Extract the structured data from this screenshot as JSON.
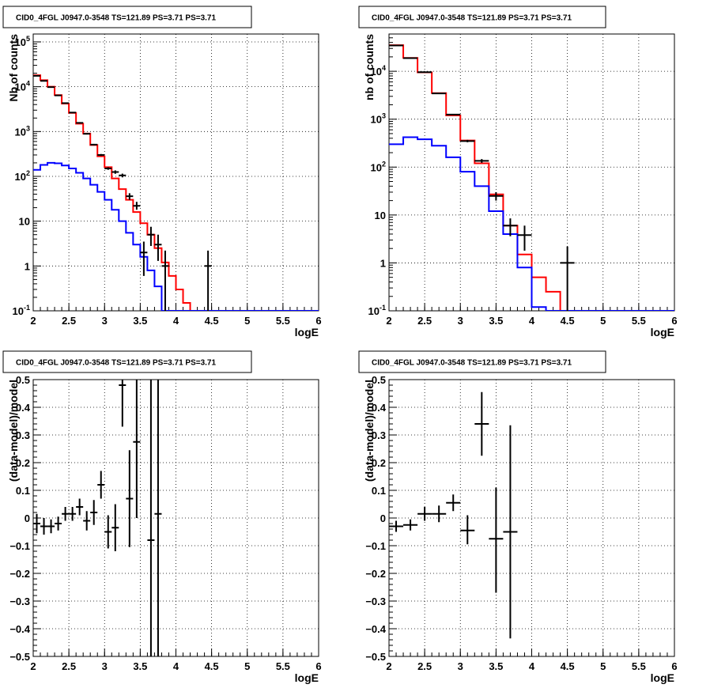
{
  "chart_data": [
    {
      "type": "histogram",
      "title": "CID0_4FGL J0947.0-3548 TS=121.89 PS=3.71 PS=3.71",
      "xlabel": "logE",
      "ylabel": "Nb of counts",
      "xlim": [
        2,
        6
      ],
      "ylim": [
        0.1,
        150000
      ],
      "yscale": "log",
      "grid": true,
      "xticks": [
        "2",
        "2.5",
        "3",
        "3.5",
        "4",
        "4.5",
        "5",
        "5.5",
        "6"
      ],
      "yticks": [
        "10^-1",
        "1",
        "10",
        "10^2",
        "10^3",
        "10^4",
        "10^5"
      ],
      "bin_edges": [
        2.0,
        2.1,
        2.2,
        2.3,
        2.4,
        2.5,
        2.6,
        2.7,
        2.8,
        2.9,
        3.0,
        3.1,
        3.2,
        3.3,
        3.4,
        3.5,
        3.6,
        3.7,
        3.8,
        3.9,
        4.0,
        4.1,
        4.2,
        4.3,
        4.4,
        4.5,
        4.6,
        4.7,
        4.8,
        4.9,
        5.0,
        5.1,
        5.2,
        5.3,
        5.4,
        5.5,
        5.6,
        5.7,
        5.8,
        5.9,
        6.0
      ],
      "series": [
        {
          "color": "#ff0000",
          "kind": "step",
          "values": [
            18000,
            14000,
            10000,
            6500,
            4200,
            2600,
            1500,
            900,
            500,
            280,
            160,
            90,
            52,
            30,
            16,
            9,
            5,
            2.5,
            1.2,
            0.6,
            0.3,
            0.15,
            0.1,
            0.1,
            0.1,
            0.1,
            0.1,
            0.1,
            0.1,
            0.1,
            0.1,
            0.1,
            0.1,
            0.1,
            0.1,
            0.1,
            0.1,
            0.1,
            0.1,
            0.1
          ]
        },
        {
          "color": "#0000ff",
          "kind": "step",
          "values": [
            140,
            180,
            200,
            195,
            175,
            150,
            120,
            90,
            65,
            45,
            30,
            18,
            10,
            5.5,
            3,
            1.6,
            0.8,
            0.35,
            0.1,
            0.1,
            0.1,
            0.1,
            0.1,
            0.1,
            0.1,
            0.1,
            0.1,
            0.1,
            0.1,
            0.1,
            0.1,
            0.1,
            0.1,
            0.1,
            0.1,
            0.1,
            0.1,
            0.1,
            0.1,
            0.1
          ]
        },
        {
          "color": "#000000",
          "kind": "points",
          "points": [
            {
              "x": 2.05,
              "y": 17500,
              "ylo": 17300,
              "yhi": 17700
            },
            {
              "x": 2.15,
              "y": 13500,
              "ylo": 13300,
              "yhi": 13700
            },
            {
              "x": 2.25,
              "y": 9800,
              "ylo": 9600,
              "yhi": 10000
            },
            {
              "x": 2.35,
              "y": 6400,
              "ylo": 6250,
              "yhi": 6550
            },
            {
              "x": 2.45,
              "y": 4300,
              "ylo": 4200,
              "yhi": 4400
            },
            {
              "x": 2.55,
              "y": 2650,
              "ylo": 2570,
              "yhi": 2730
            },
            {
              "x": 2.65,
              "y": 1560,
              "ylo": 1500,
              "yhi": 1620
            },
            {
              "x": 2.75,
              "y": 890,
              "ylo": 860,
              "yhi": 920
            },
            {
              "x": 2.85,
              "y": 510,
              "ylo": 490,
              "yhi": 530
            },
            {
              "x": 2.95,
              "y": 300,
              "ylo": 285,
              "yhi": 315
            },
            {
              "x": 3.05,
              "y": 150,
              "ylo": 140,
              "yhi": 160
            },
            {
              "x": 3.15,
              "y": 125,
              "ylo": 114,
              "yhi": 136
            },
            {
              "x": 3.25,
              "y": 105,
              "ylo": 95,
              "yhi": 115
            },
            {
              "x": 3.35,
              "y": 36,
              "ylo": 30,
              "yhi": 42
            },
            {
              "x": 3.45,
              "y": 22,
              "ylo": 18,
              "yhi": 27
            },
            {
              "x": 3.55,
              "y": 2,
              "ylo": 0.6,
              "yhi": 3.5
            },
            {
              "x": 3.65,
              "y": 5,
              "ylo": 2.8,
              "yhi": 7.5
            },
            {
              "x": 3.75,
              "y": 3,
              "ylo": 1.3,
              "yhi": 5
            },
            {
              "x": 3.85,
              "y": 1,
              "ylo": 0.1,
              "yhi": 2.2
            },
            {
              "x": 4.45,
              "y": 1,
              "ylo": 0.1,
              "yhi": 2.2
            }
          ]
        }
      ]
    },
    {
      "type": "histogram",
      "title": "CID0_4FGL J0947.0-3548 TS=121.89 PS=3.71 PS=3.71",
      "xlabel": "logE",
      "ylabel": "nb of counts",
      "xlim": [
        2,
        6
      ],
      "ylim": [
        0.1,
        60000
      ],
      "yscale": "log",
      "grid": true,
      "xticks": [
        "2",
        "2.5",
        "3",
        "3.5",
        "4",
        "4.5",
        "5",
        "5.5",
        "6"
      ],
      "yticks": [
        "10^-1",
        "1",
        "10",
        "10^2",
        "10^3",
        "10^4"
      ],
      "bin_edges": [
        2.0,
        2.2,
        2.4,
        2.6,
        2.8,
        3.0,
        3.2,
        3.4,
        3.6,
        3.8,
        4.0,
        4.2,
        4.4,
        4.6,
        4.8,
        5.0,
        5.2,
        5.4,
        5.6,
        5.8,
        6.0
      ],
      "series": [
        {
          "color": "#ff0000",
          "kind": "step",
          "values": [
            35000,
            19000,
            9500,
            3500,
            1200,
            360,
            120,
            27,
            6,
            1.5,
            0.5,
            0.25,
            0.1,
            0.1,
            0.1,
            0.1,
            0.1,
            0.1,
            0.1,
            0.1
          ]
        },
        {
          "color": "#0000ff",
          "kind": "step",
          "values": [
            300,
            420,
            380,
            280,
            160,
            80,
            40,
            12,
            4,
            0.8,
            0.12,
            0.1,
            0.1,
            0.1,
            0.1,
            0.1,
            0.1,
            0.1,
            0.1,
            0.1
          ]
        },
        {
          "color": "#000000",
          "kind": "points",
          "points": [
            {
              "x": 2.1,
              "y": 34500,
              "ylo": 34300,
              "yhi": 34700
            },
            {
              "x": 2.3,
              "y": 18800,
              "ylo": 18600,
              "yhi": 19000
            },
            {
              "x": 2.5,
              "y": 9600,
              "ylo": 9450,
              "yhi": 9750
            },
            {
              "x": 2.7,
              "y": 3450,
              "ylo": 3380,
              "yhi": 3520
            },
            {
              "x": 2.9,
              "y": 1250,
              "ylo": 1210,
              "yhi": 1290
            },
            {
              "x": 3.1,
              "y": 350,
              "ylo": 330,
              "yhi": 370
            },
            {
              "x": 3.3,
              "y": 135,
              "ylo": 123,
              "yhi": 147
            },
            {
              "x": 3.5,
              "y": 25,
              "ylo": 20,
              "yhi": 30
            },
            {
              "x": 3.7,
              "y": 6,
              "ylo": 3.6,
              "yhi": 8.5
            },
            {
              "x": 3.9,
              "y": 3.8,
              "ylo": 1.8,
              "yhi": 6
            },
            {
              "x": 4.5,
              "y": 1,
              "ylo": 0.1,
              "yhi": 2.2
            }
          ]
        }
      ]
    },
    {
      "type": "scatter",
      "title": "CID0_4FGL J0947.0-3548 TS=121.89 PS=3.71 PS=3.71",
      "xlabel": "logE",
      "ylabel": "(data-model)/model",
      "xlim": [
        2,
        6
      ],
      "ylim": [
        -0.5,
        0.5
      ],
      "grid": true,
      "xticks": [
        "2",
        "2.5",
        "3",
        "3.5",
        "4",
        "4.5",
        "5",
        "5.5",
        "6"
      ],
      "yticks": [
        "−0.5",
        "−0.4",
        "−0.3",
        "−0.2",
        "−0.1",
        "0",
        "0.1",
        "0.2",
        "0.3",
        "0.4",
        "0.5"
      ],
      "series": [
        {
          "color": "#000000",
          "xerr": 0.05,
          "points": [
            {
              "x": 2.05,
              "y": -0.02,
              "ylo": -0.055,
              "yhi": 0.015
            },
            {
              "x": 2.15,
              "y": -0.03,
              "ylo": -0.06,
              "yhi": 0.0
            },
            {
              "x": 2.25,
              "y": -0.03,
              "ylo": -0.055,
              "yhi": -0.005
            },
            {
              "x": 2.35,
              "y": -0.02,
              "ylo": -0.045,
              "yhi": 0.005
            },
            {
              "x": 2.45,
              "y": 0.015,
              "ylo": -0.01,
              "yhi": 0.04
            },
            {
              "x": 2.55,
              "y": 0.015,
              "ylo": -0.01,
              "yhi": 0.04
            },
            {
              "x": 2.65,
              "y": 0.04,
              "ylo": 0.01,
              "yhi": 0.07
            },
            {
              "x": 2.75,
              "y": -0.01,
              "ylo": -0.045,
              "yhi": 0.025
            },
            {
              "x": 2.85,
              "y": 0.02,
              "ylo": -0.025,
              "yhi": 0.065
            },
            {
              "x": 2.95,
              "y": 0.12,
              "ylo": 0.07,
              "yhi": 0.17
            },
            {
              "x": 3.05,
              "y": -0.05,
              "ylo": -0.11,
              "yhi": 0.01
            },
            {
              "x": 3.15,
              "y": -0.035,
              "ylo": -0.12,
              "yhi": 0.05
            },
            {
              "x": 3.25,
              "y": 0.48,
              "ylo": 0.33,
              "yhi": 0.5
            },
            {
              "x": 3.35,
              "y": 0.07,
              "ylo": -0.105,
              "yhi": 0.245
            },
            {
              "x": 3.45,
              "y": 0.275,
              "ylo": 0.0,
              "yhi": 0.5
            },
            {
              "x": 3.65,
              "y": -0.08,
              "ylo": -0.5,
              "yhi": 0.5
            },
            {
              "x": 3.75,
              "y": 0.015,
              "ylo": -0.5,
              "yhi": 0.5
            }
          ]
        }
      ]
    },
    {
      "type": "scatter",
      "title": "CID0_4FGL J0947.0-3548 TS=121.89 PS=3.71 PS=3.71",
      "xlabel": "logE",
      "ylabel": "(data-model)/model",
      "xlim": [
        2,
        6
      ],
      "ylim": [
        -0.5,
        0.5
      ],
      "grid": true,
      "xticks": [
        "2",
        "2.5",
        "3",
        "3.5",
        "4",
        "4.5",
        "5",
        "5.5",
        "6"
      ],
      "yticks": [
        "−0.5",
        "−0.4",
        "−0.3",
        "−0.2",
        "−0.1",
        "0",
        "0.1",
        "0.2",
        "0.3",
        "0.4",
        "0.5"
      ],
      "series": [
        {
          "color": "#000000",
          "xerr": 0.1,
          "points": [
            {
              "x": 2.1,
              "y": -0.03,
              "ylo": -0.05,
              "yhi": -0.01
            },
            {
              "x": 2.3,
              "y": -0.025,
              "ylo": -0.045,
              "yhi": -0.005
            },
            {
              "x": 2.5,
              "y": 0.015,
              "ylo": -0.01,
              "yhi": 0.04
            },
            {
              "x": 2.7,
              "y": 0.015,
              "ylo": -0.015,
              "yhi": 0.045
            },
            {
              "x": 2.9,
              "y": 0.055,
              "ylo": 0.025,
              "yhi": 0.085
            },
            {
              "x": 3.1,
              "y": -0.045,
              "ylo": -0.095,
              "yhi": 0.01
            },
            {
              "x": 3.3,
              "y": 0.34,
              "ylo": 0.225,
              "yhi": 0.455
            },
            {
              "x": 3.5,
              "y": -0.075,
              "ylo": -0.27,
              "yhi": 0.11
            },
            {
              "x": 3.7,
              "y": -0.05,
              "ylo": -0.435,
              "yhi": 0.335
            }
          ]
        }
      ]
    }
  ]
}
